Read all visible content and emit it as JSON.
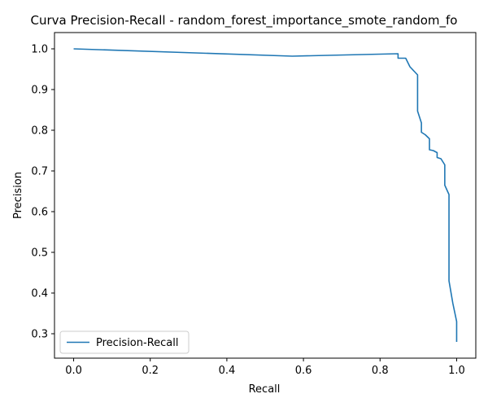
{
  "chart_data": {
    "type": "line",
    "title": "Curva Precision-Recall - random_forest_importance_smote_random_fo",
    "xlabel": "Recall",
    "ylabel": "Precision",
    "xlim": [
      -0.05,
      1.05
    ],
    "ylim": [
      0.24,
      1.04
    ],
    "xticks": [
      0.0,
      0.2,
      0.4,
      0.6,
      0.8,
      1.0
    ],
    "xtick_labels": [
      "0.0",
      "0.2",
      "0.4",
      "0.6",
      "0.8",
      "1.0"
    ],
    "yticks": [
      0.3,
      0.4,
      0.5,
      0.6,
      0.7,
      0.8,
      0.9,
      1.0
    ],
    "ytick_labels": [
      "0.3",
      "0.4",
      "0.5",
      "0.6",
      "0.7",
      "0.8",
      "0.9",
      "1.0"
    ],
    "grid": false,
    "legend_position": "lower-left",
    "series": [
      {
        "name": "Precision-Recall",
        "color": "#1f77b4",
        "x": [
          0.0,
          0.571,
          0.847,
          0.847,
          0.867,
          0.878,
          0.898,
          0.898,
          0.908,
          0.908,
          0.918,
          0.929,
          0.929,
          0.939,
          0.949,
          0.949,
          0.959,
          0.969,
          0.969,
          0.98,
          0.98,
          0.99,
          1.0,
          1.0
        ],
        "y": [
          1.0,
          0.982,
          0.988,
          0.977,
          0.977,
          0.956,
          0.936,
          0.847,
          0.818,
          0.795,
          0.789,
          0.779,
          0.752,
          0.75,
          0.745,
          0.733,
          0.73,
          0.715,
          0.665,
          0.642,
          0.43,
          0.375,
          0.33,
          0.28
        ]
      }
    ]
  }
}
